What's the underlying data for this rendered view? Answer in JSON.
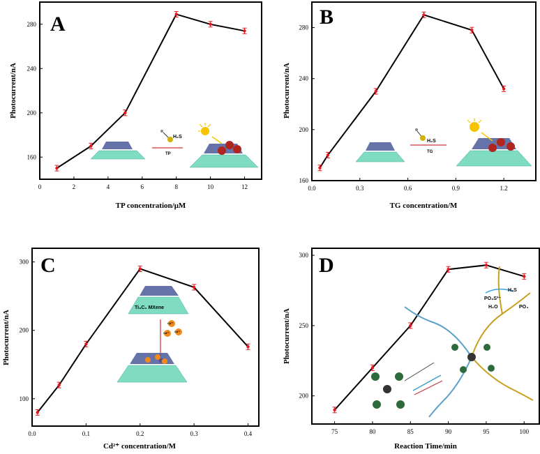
{
  "chart_data": [
    {
      "type": "line",
      "panel": "A",
      "xlabel": "TP concentration/μM",
      "ylabel": "Photocurrent/nA",
      "xlim": [
        0,
        13
      ],
      "ylim": [
        140,
        300
      ],
      "xticks": [
        0,
        2,
        4,
        6,
        8,
        10,
        12
      ],
      "yticks": [
        160,
        200,
        240,
        280
      ],
      "xtick_labels": [
        "0",
        "2",
        "4",
        "6",
        "8",
        "10",
        "12"
      ],
      "ytick_labels": [
        "160",
        "200",
        "240",
        "280"
      ],
      "x": [
        1,
        3,
        5,
        8,
        10,
        12
      ],
      "y": [
        150,
        170,
        200,
        289,
        280,
        274
      ],
      "illustration_labels": [
        "H₂S",
        "TP"
      ]
    },
    {
      "type": "line",
      "panel": "B",
      "xlabel": "TG concentration/M",
      "ylabel": "Photocurrent/nA",
      "xlim": [
        0,
        1.4
      ],
      "ylim": [
        160,
        300
      ],
      "xticks": [
        0,
        0.3,
        0.6,
        0.9,
        1.2
      ],
      "yticks": [
        160,
        200,
        240,
        280
      ],
      "xtick_labels": [
        "0.0",
        "0.3",
        "0.6",
        "0.9",
        "1.2"
      ],
      "ytick_labels": [
        "160",
        "200",
        "240",
        "280"
      ],
      "x": [
        0.05,
        0.1,
        0.4,
        0.7,
        1.0,
        1.2
      ],
      "y": [
        170,
        180,
        230,
        290,
        278,
        232
      ],
      "illustration_labels": [
        "H₂S",
        "TG"
      ]
    },
    {
      "type": "line",
      "panel": "C",
      "xlabel": "Cd²⁺ concentration/M",
      "ylabel": "Photocurrent/nA",
      "xlim": [
        0,
        0.42
      ],
      "ylim": [
        60,
        320
      ],
      "xticks": [
        0,
        0.1,
        0.2,
        0.3,
        0.4
      ],
      "yticks": [
        100,
        200,
        300
      ],
      "xtick_labels": [
        "0.0",
        "0.1",
        "0.2",
        "0.3",
        "0.4"
      ],
      "ytick_labels": [
        "100",
        "200",
        "300"
      ],
      "x": [
        0.01,
        0.05,
        0.1,
        0.2,
        0.3,
        0.4
      ],
      "y": [
        80,
        120,
        180,
        290,
        263,
        176
      ],
      "illustration_labels": [
        "Ti₃C₂ MXene",
        "Cd²⁺",
        "Cd²⁺",
        "Cd²⁺"
      ]
    },
    {
      "type": "line",
      "panel": "D",
      "xlabel": "Reaction Time/min",
      "ylabel": "Photocurrent/nA",
      "xlim": [
        72,
        102
      ],
      "ylim": [
        180,
        305
      ],
      "xticks": [
        75,
        80,
        85,
        90,
        95,
        100
      ],
      "yticks": [
        200,
        250,
        300
      ],
      "xtick_labels": [
        "75",
        "80",
        "85",
        "90",
        "95",
        "100"
      ],
      "ytick_labels": [
        "200",
        "250",
        "300"
      ],
      "x": [
        75,
        80,
        85,
        90,
        95,
        100
      ],
      "y": [
        190,
        220,
        250,
        290,
        293,
        285
      ],
      "illustration_labels": [
        "H₂S",
        "PO₃S³⁻",
        "H₂O",
        "PO₄"
      ]
    }
  ],
  "colors": {
    "line": "#000000",
    "marker": "#e8161c",
    "substrate": "#7fdcc0",
    "sun": "#f5c400",
    "mxene": "#4a5a9a",
    "cds": "#b0251e"
  }
}
